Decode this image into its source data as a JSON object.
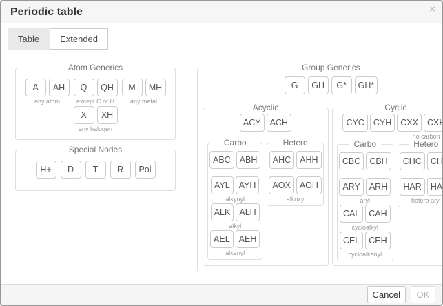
{
  "window": {
    "title": "Periodic table",
    "close_icon": "×"
  },
  "tabs": [
    {
      "label": "Table",
      "active": false
    },
    {
      "label": "Extended",
      "active": true
    }
  ],
  "atom_generics": {
    "legend": "Atom Generics",
    "groups": [
      {
        "buttons": [
          "A",
          "AH"
        ],
        "label": "any atom"
      },
      {
        "buttons": [
          "Q",
          "QH"
        ],
        "label": "except C or H"
      },
      {
        "buttons": [
          "M",
          "MH"
        ],
        "label": "any metal"
      },
      {
        "buttons": [
          "X",
          "XH"
        ],
        "label": "any halogen"
      }
    ]
  },
  "special_nodes": {
    "legend": "Special Nodes",
    "buttons": [
      "H+",
      "D",
      "T",
      "R",
      "Pol"
    ]
  },
  "group_generics": {
    "legend": "Group Generics",
    "buttons": [
      "G",
      "GH",
      "G*",
      "GH*"
    ],
    "acyclic": {
      "legend": "Acyclic",
      "top_buttons": [
        "ACY",
        "ACH"
      ],
      "carbo": {
        "legend": "Carbo",
        "rows": [
          {
            "buttons": [
              "ABC",
              "ABH"
            ],
            "label": ""
          },
          {
            "buttons": [
              "AYL",
              "AYH"
            ],
            "label": "alkynyl"
          },
          {
            "buttons": [
              "ALK",
              "ALH"
            ],
            "label": "alkyl"
          },
          {
            "buttons": [
              "AEL",
              "AEH"
            ],
            "label": "alkenyl"
          }
        ]
      },
      "hetero": {
        "legend": "Hetero",
        "rows": [
          {
            "buttons": [
              "AHC",
              "AHH"
            ],
            "label": ""
          },
          {
            "buttons": [
              "AOX",
              "AOH"
            ],
            "label": "alkoxy"
          }
        ]
      }
    },
    "cyclic": {
      "legend": "Cyclic",
      "top_buttons": [
        "CYC",
        "CYH",
        "CXX",
        "CXH"
      ],
      "top_label": "no carbon",
      "carbo": {
        "legend": "Carbo",
        "rows": [
          {
            "buttons": [
              "CBC",
              "CBH"
            ],
            "label": ""
          },
          {
            "buttons": [
              "ARY",
              "ARH"
            ],
            "label": "aryl"
          },
          {
            "buttons": [
              "CAL",
              "CAH"
            ],
            "label": "cycloalkyl"
          },
          {
            "buttons": [
              "CEL",
              "CEH"
            ],
            "label": "cycloalkenyl"
          }
        ]
      },
      "hetero": {
        "legend": "Hetero",
        "rows": [
          {
            "buttons": [
              "CHC",
              "CHH"
            ],
            "label": ""
          },
          {
            "buttons": [
              "HAR",
              "HAH"
            ],
            "label": "hetero aryl"
          }
        ]
      }
    }
  },
  "footer": {
    "cancel_label": "Cancel",
    "ok_label": "OK"
  },
  "colors": {
    "dialog_border": "#979797",
    "header_bg": "#f6f6f6",
    "footer_bg": "#f5f5f5",
    "box_border": "#dedede",
    "button_border": "#cccccc",
    "button_text": "#555555",
    "legend_text": "#777777",
    "sublabel_text": "#9b9b9b",
    "disabled_text": "#b3b3b3"
  }
}
